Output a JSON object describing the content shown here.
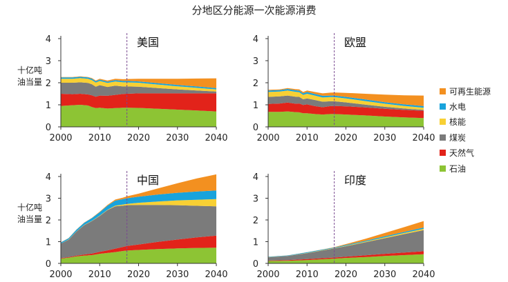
{
  "title": "分地区分能源一次能源消费",
  "ylabel": "十亿吨油当量",
  "ylabel_lines": [
    "十亿吨",
    "油当量"
  ],
  "legend": [
    {
      "label": "可再生能源",
      "color": "#F39020"
    },
    {
      "label": "水电",
      "color": "#19A3DC"
    },
    {
      "label": "核能",
      "color": "#F8D034"
    },
    {
      "label": "煤炭",
      "color": "#7B7B7B"
    },
    {
      "label": "天然气",
      "color": "#E2231A"
    },
    {
      "label": "石油",
      "color": "#8DC434"
    }
  ],
  "chart_data": [
    {
      "type": "area",
      "title": "美国",
      "x": [
        2000,
        2003,
        2005,
        2007,
        2008,
        2009,
        2010,
        2012,
        2014,
        2016,
        2017,
        2020,
        2025,
        2030,
        2035,
        2040
      ],
      "xlim": [
        2000,
        2040
      ],
      "ylim": [
        0,
        4
      ],
      "xticks": [
        2000,
        2010,
        2020,
        2030,
        2040
      ],
      "yticks": [
        0,
        1,
        2,
        3,
        4
      ],
      "projection_start": 2017,
      "series": [
        {
          "name": "石油",
          "values": [
            0.95,
            0.98,
            1.0,
            0.97,
            0.9,
            0.85,
            0.87,
            0.83,
            0.85,
            0.87,
            0.87,
            0.86,
            0.82,
            0.78,
            0.74,
            0.7
          ]
        },
        {
          "name": "天然气",
          "values": [
            0.55,
            0.5,
            0.5,
            0.5,
            0.53,
            0.52,
            0.55,
            0.58,
            0.6,
            0.62,
            0.63,
            0.66,
            0.7,
            0.74,
            0.78,
            0.82
          ]
        },
        {
          "name": "煤炭",
          "values": [
            0.5,
            0.52,
            0.52,
            0.52,
            0.5,
            0.45,
            0.47,
            0.4,
            0.42,
            0.34,
            0.33,
            0.3,
            0.24,
            0.18,
            0.13,
            0.08
          ]
        },
        {
          "name": "核能",
          "values": [
            0.18,
            0.18,
            0.19,
            0.19,
            0.19,
            0.19,
            0.19,
            0.18,
            0.19,
            0.19,
            0.19,
            0.18,
            0.16,
            0.14,
            0.12,
            0.1
          ]
        },
        {
          "name": "水电",
          "values": [
            0.06,
            0.06,
            0.06,
            0.06,
            0.06,
            0.06,
            0.06,
            0.06,
            0.06,
            0.06,
            0.06,
            0.06,
            0.06,
            0.06,
            0.06,
            0.06
          ]
        },
        {
          "name": "可再生能源",
          "values": [
            0.02,
            0.02,
            0.02,
            0.02,
            0.03,
            0.03,
            0.04,
            0.05,
            0.06,
            0.08,
            0.09,
            0.12,
            0.2,
            0.28,
            0.36,
            0.44
          ]
        }
      ]
    },
    {
      "type": "area",
      "title": "欧盟",
      "x": [
        2000,
        2003,
        2005,
        2007,
        2008,
        2009,
        2010,
        2012,
        2014,
        2016,
        2017,
        2020,
        2025,
        2030,
        2035,
        2040
      ],
      "xlim": [
        2000,
        2040
      ],
      "ylim": [
        0,
        4
      ],
      "xticks": [
        2000,
        2010,
        2020,
        2030,
        2040
      ],
      "yticks": [
        0,
        1,
        2,
        3,
        4
      ],
      "projection_start": 2017,
      "series": [
        {
          "name": "石油",
          "values": [
            0.68,
            0.68,
            0.7,
            0.67,
            0.66,
            0.62,
            0.62,
            0.58,
            0.56,
            0.58,
            0.58,
            0.56,
            0.52,
            0.47,
            0.43,
            0.4
          ]
        },
        {
          "name": "天然气",
          "values": [
            0.36,
            0.38,
            0.4,
            0.38,
            0.4,
            0.37,
            0.4,
            0.36,
            0.33,
            0.36,
            0.37,
            0.37,
            0.36,
            0.35,
            0.34,
            0.33
          ]
        },
        {
          "name": "煤炭",
          "values": [
            0.32,
            0.32,
            0.32,
            0.32,
            0.3,
            0.26,
            0.27,
            0.28,
            0.25,
            0.22,
            0.21,
            0.18,
            0.13,
            0.09,
            0.06,
            0.04
          ]
        },
        {
          "name": "核能",
          "values": [
            0.22,
            0.22,
            0.23,
            0.22,
            0.21,
            0.2,
            0.21,
            0.2,
            0.19,
            0.19,
            0.19,
            0.18,
            0.16,
            0.14,
            0.12,
            0.1
          ]
        },
        {
          "name": "水电",
          "values": [
            0.07,
            0.07,
            0.07,
            0.07,
            0.07,
            0.07,
            0.08,
            0.07,
            0.08,
            0.07,
            0.07,
            0.07,
            0.07,
            0.07,
            0.07,
            0.07
          ]
        },
        {
          "name": "可再生能源",
          "values": [
            0.03,
            0.03,
            0.04,
            0.05,
            0.06,
            0.06,
            0.07,
            0.09,
            0.11,
            0.13,
            0.14,
            0.18,
            0.26,
            0.34,
            0.41,
            0.48
          ]
        }
      ]
    },
    {
      "type": "area",
      "title": "中国",
      "x": [
        2000,
        2002,
        2004,
        2006,
        2008,
        2010,
        2012,
        2014,
        2016,
        2017,
        2020,
        2025,
        2030,
        2035,
        2040
      ],
      "xlim": [
        2000,
        2040
      ],
      "ylim": [
        0,
        4
      ],
      "xticks": [
        2000,
        2010,
        2020,
        2030,
        2040
      ],
      "yticks": [
        0,
        1,
        2,
        3,
        4
      ],
      "projection_start": 2017,
      "series": [
        {
          "name": "石油",
          "values": [
            0.22,
            0.26,
            0.32,
            0.36,
            0.38,
            0.44,
            0.48,
            0.52,
            0.57,
            0.59,
            0.62,
            0.66,
            0.69,
            0.71,
            0.72
          ]
        },
        {
          "name": "天然气",
          "values": [
            0.02,
            0.03,
            0.04,
            0.05,
            0.07,
            0.09,
            0.12,
            0.16,
            0.19,
            0.21,
            0.25,
            0.33,
            0.41,
            0.49,
            0.56
          ]
        },
        {
          "name": "煤炭",
          "values": [
            0.67,
            0.8,
            1.1,
            1.35,
            1.5,
            1.65,
            1.85,
            1.95,
            1.9,
            1.88,
            1.82,
            1.7,
            1.58,
            1.45,
            1.35
          ]
        },
        {
          "name": "核能",
          "values": [
            0.005,
            0.01,
            0.01,
            0.01,
            0.01,
            0.02,
            0.02,
            0.03,
            0.05,
            0.06,
            0.1,
            0.16,
            0.22,
            0.28,
            0.33
          ]
        },
        {
          "name": "水电",
          "values": [
            0.05,
            0.06,
            0.08,
            0.1,
            0.13,
            0.16,
            0.19,
            0.23,
            0.25,
            0.26,
            0.28,
            0.32,
            0.35,
            0.38,
            0.4
          ]
        },
        {
          "name": "可再生能源",
          "values": [
            0.005,
            0.005,
            0.005,
            0.01,
            0.01,
            0.02,
            0.03,
            0.05,
            0.07,
            0.09,
            0.14,
            0.28,
            0.44,
            0.6,
            0.74
          ]
        }
      ]
    },
    {
      "type": "area",
      "title": "印度",
      "x": [
        2000,
        2005,
        2010,
        2015,
        2017,
        2020,
        2025,
        2030,
        2035,
        2040
      ],
      "xlim": [
        2000,
        2040
      ],
      "ylim": [
        0,
        4
      ],
      "xticks": [
        2000,
        2010,
        2020,
        2030,
        2040
      ],
      "yticks": [
        0,
        1,
        2,
        3,
        4
      ],
      "projection_start": 2017,
      "series": [
        {
          "name": "石油",
          "values": [
            0.11,
            0.12,
            0.15,
            0.2,
            0.22,
            0.25,
            0.29,
            0.34,
            0.38,
            0.42
          ]
        },
        {
          "name": "天然气",
          "values": [
            0.02,
            0.03,
            0.05,
            0.05,
            0.05,
            0.06,
            0.08,
            0.1,
            0.12,
            0.14
          ]
        },
        {
          "name": "煤炭",
          "values": [
            0.15,
            0.19,
            0.27,
            0.38,
            0.42,
            0.48,
            0.6,
            0.72,
            0.85,
            0.97
          ]
        },
        {
          "name": "核能",
          "values": [
            0.005,
            0.005,
            0.01,
            0.01,
            0.01,
            0.02,
            0.03,
            0.04,
            0.05,
            0.06
          ]
        },
        {
          "name": "水电",
          "values": [
            0.02,
            0.02,
            0.03,
            0.03,
            0.03,
            0.04,
            0.04,
            0.05,
            0.05,
            0.06
          ]
        },
        {
          "name": "可再生能源",
          "values": [
            0.002,
            0.003,
            0.005,
            0.01,
            0.015,
            0.04,
            0.09,
            0.15,
            0.22,
            0.3
          ]
        }
      ]
    }
  ]
}
